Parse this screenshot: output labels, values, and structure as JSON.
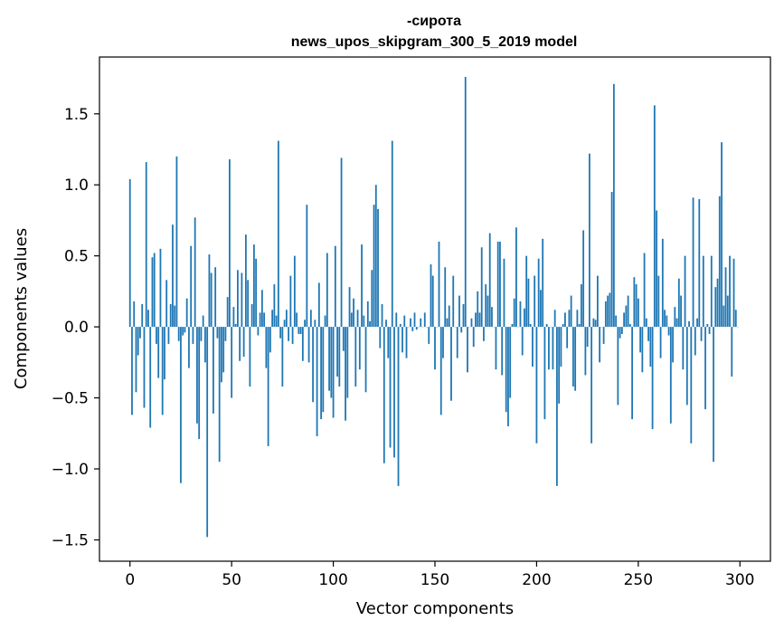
{
  "chart_data": {
    "type": "bar",
    "title": [
      "-сирота",
      "news_upos_skipgram_300_5_2019 model"
    ],
    "xlabel": "Vector components",
    "ylabel": "Components values",
    "xlim": [
      -15,
      315
    ],
    "ylim": [
      -1.65,
      1.9
    ],
    "xticks": [
      0,
      50,
      100,
      150,
      200,
      250,
      300
    ],
    "xtick_labels": [
      "0",
      "50",
      "100",
      "150",
      "200",
      "250",
      "300"
    ],
    "yticks": [
      -1.5,
      -1.0,
      -0.5,
      0.0,
      0.5,
      1.0,
      1.5
    ],
    "ytick_labels": [
      "−1.5",
      "−1.0",
      "−0.5",
      "0.0",
      "0.5",
      "1.0",
      "1.5"
    ],
    "bar_color": "#1f77b4",
    "x": "component index 0..299",
    "values": [
      1.04,
      -0.62,
      0.18,
      -0.46,
      -0.2,
      -0.08,
      0.16,
      -0.57,
      1.16,
      0.12,
      -0.71,
      0.49,
      0.52,
      -0.12,
      -0.36,
      0.55,
      -0.62,
      -0.37,
      0.33,
      -0.12,
      0.16,
      0.72,
      0.15,
      1.2,
      -0.1,
      -1.1,
      -0.06,
      -0.04,
      0.2,
      -0.29,
      0.57,
      -0.12,
      0.77,
      -0.68,
      -0.79,
      -0.1,
      0.08,
      -0.25,
      -1.48,
      0.51,
      0.38,
      -0.61,
      0.42,
      -0.08,
      -0.95,
      -0.39,
      -0.32,
      -0.1,
      0.21,
      1.18,
      -0.5,
      0.14,
      0.02,
      0.4,
      -0.24,
      0.38,
      -0.21,
      0.65,
      0.33,
      -0.42,
      0.16,
      0.58,
      0.48,
      -0.06,
      0.1,
      0.26,
      0.1,
      -0.29,
      -0.84,
      -0.18,
      0.12,
      0.3,
      0.08,
      1.31,
      -0.08,
      -0.42,
      0.05,
      0.12,
      -0.1,
      0.36,
      -0.12,
      0.5,
      0.1,
      -0.05,
      -0.05,
      -0.24,
      0.05,
      0.86,
      -0.25,
      0.12,
      -0.53,
      0.05,
      -0.77,
      0.31,
      -0.65,
      -0.6,
      0.08,
      0.52,
      -0.45,
      -0.5,
      -0.64,
      0.57,
      -0.35,
      -0.42,
      1.19,
      -0.17,
      -0.66,
      -0.5,
      0.28,
      0.1,
      0.2,
      -0.42,
      0.12,
      -0.3,
      0.58,
      0.08,
      -0.46,
      0.18,
      0.04,
      0.4,
      0.86,
      1.0,
      0.83,
      -0.15,
      0.16,
      -0.96,
      0.05,
      -0.22,
      -0.85,
      1.31,
      -0.92,
      0.1,
      -1.12,
      0.02,
      -0.18,
      0.08,
      -0.22,
      0.0,
      0.06,
      -0.03,
      0.1,
      -0.02,
      0.0,
      0.06,
      0.0,
      0.1,
      0.0,
      -0.12,
      0.44,
      0.36,
      -0.3,
      0.0,
      0.6,
      -0.62,
      -0.22,
      0.42,
      0.06,
      0.15,
      -0.52,
      0.36,
      0.0,
      -0.22,
      0.22,
      -0.04,
      0.16,
      1.76,
      -0.32,
      0.0,
      0.06,
      -0.14,
      0.1,
      0.25,
      0.1,
      0.56,
      -0.1,
      0.3,
      0.22,
      0.66,
      0.14,
      0.0,
      -0.3,
      0.6,
      0.6,
      -0.34,
      0.48,
      -0.6,
      -0.7,
      -0.5,
      0.02,
      0.2,
      0.7,
      0.0,
      0.18,
      -0.2,
      0.13,
      0.5,
      0.34,
      0.02,
      -0.28,
      0.36,
      -0.82,
      0.48,
      0.26,
      0.62,
      -0.65,
      0.02,
      -0.3,
      0.0,
      -0.3,
      0.12,
      -1.12,
      -0.54,
      -0.28,
      0.02,
      0.1,
      -0.15,
      0.12,
      0.22,
      -0.42,
      -0.45,
      0.12,
      0.02,
      0.3,
      0.68,
      -0.34,
      -0.14,
      1.22,
      -0.82,
      0.06,
      0.05,
      0.36,
      -0.25,
      0.0,
      -0.12,
      0.18,
      0.22,
      0.24,
      0.95,
      1.71,
      0.08,
      -0.55,
      -0.08,
      -0.05,
      0.1,
      0.15,
      0.22,
      0.02,
      -0.65,
      0.35,
      0.3,
      0.2,
      -0.18,
      -0.32,
      0.52,
      0.06,
      -0.1,
      -0.28,
      -0.72,
      1.56,
      0.82,
      0.36,
      -0.22,
      0.62,
      0.12,
      0.08,
      -0.06,
      -0.68,
      -0.25,
      0.14,
      0.06,
      0.34,
      0.22,
      -0.3,
      0.5,
      -0.55,
      0.04,
      -0.82,
      0.91,
      -0.2,
      0.06,
      0.9,
      -0.1,
      0.5,
      -0.58,
      0.02,
      -0.05,
      0.5,
      -0.95,
      0.28,
      0.34,
      0.92,
      1.3,
      0.15,
      0.42,
      0.22,
      0.5,
      -0.35,
      0.48,
      0.12,
      0.0
    ]
  }
}
